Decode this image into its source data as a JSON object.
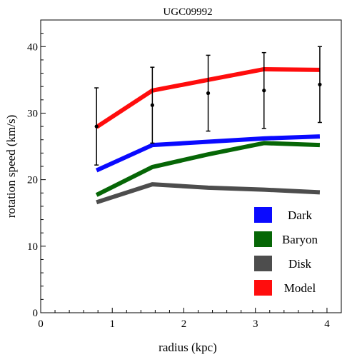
{
  "chart_data": {
    "type": "line",
    "title": "UGC09992",
    "xlabel": "radius (kpc)",
    "ylabel": "rotation speed (km/s)",
    "xlim": [
      0,
      4.2
    ],
    "ylim": [
      0,
      44
    ],
    "xticks": [
      0,
      1,
      2,
      3,
      4
    ],
    "yticks": [
      0,
      10,
      20,
      30,
      40
    ],
    "grid": false,
    "legend_position": "bottom-right",
    "x": [
      0.78,
      1.56,
      2.34,
      3.12,
      3.9
    ],
    "series": [
      {
        "name": "Dark",
        "color": "#0a0aff",
        "values": [
          21.4,
          25.2,
          25.7,
          26.2,
          26.5
        ]
      },
      {
        "name": "Baryon",
        "color": "#066606",
        "values": [
          17.7,
          21.9,
          23.8,
          25.5,
          25.2
        ]
      },
      {
        "name": "Disk",
        "color": "#4d4d4d",
        "values": [
          16.6,
          19.3,
          18.8,
          18.5,
          18.1
        ]
      },
      {
        "name": "Model",
        "color": "#ff0d0d",
        "values": [
          27.9,
          33.4,
          35.0,
          36.6,
          36.5
        ]
      }
    ],
    "observed": {
      "y": [
        28.0,
        31.2,
        33.0,
        33.4,
        34.3
      ],
      "err": [
        5.8,
        5.7,
        5.7,
        5.7,
        5.7
      ]
    }
  }
}
